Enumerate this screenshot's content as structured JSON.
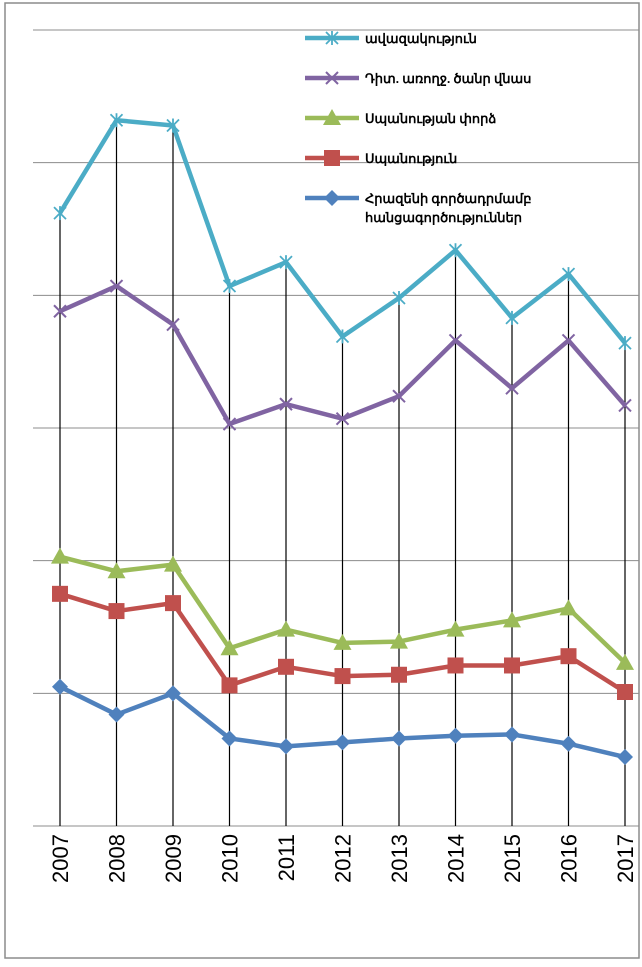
{
  "chart_data": {
    "type": "line",
    "categories": [
      "2007",
      "2008",
      "2009",
      "2010",
      "2011",
      "2012",
      "2013",
      "2014",
      "2015",
      "2016",
      "2017"
    ],
    "ylim": [
      0,
      6
    ],
    "grid": true,
    "legend_position": "top-right",
    "series": [
      {
        "name": "ավազակություն",
        "color": "#4BACC6",
        "marker": "star",
        "values": [
          4.62,
          5.32,
          5.28,
          4.07,
          4.25,
          3.69,
          3.98,
          4.34,
          3.83,
          4.16,
          3.64
        ]
      },
      {
        "name": "Դիտ. առողջ. ծանր վնաս",
        "color": "#8064A2",
        "marker": "x",
        "values": [
          3.88,
          4.07,
          3.78,
          3.03,
          3.18,
          3.07,
          3.24,
          3.66,
          3.3,
          3.66,
          3.17
        ]
      },
      {
        "name": "Սպանության փորձ",
        "color": "#9BBB59",
        "marker": "triangle",
        "values": [
          2.03,
          1.92,
          1.97,
          1.34,
          1.48,
          1.38,
          1.39,
          1.48,
          1.55,
          1.64,
          1.23
        ]
      },
      {
        "name": "Սպանություն",
        "color": "#C0504D",
        "marker": "square",
        "values": [
          1.75,
          1.62,
          1.68,
          1.06,
          1.2,
          1.13,
          1.14,
          1.21,
          1.21,
          1.28,
          1.01
        ]
      },
      {
        "name": "Հրազենի գործադրմամբ հանցագործություններ",
        "color": "#4F81BD",
        "marker": "diamond",
        "values": [
          1.05,
          0.84,
          1.0,
          0.66,
          0.6,
          0.63,
          0.66,
          0.68,
          0.69,
          0.62,
          0.52
        ]
      }
    ]
  }
}
